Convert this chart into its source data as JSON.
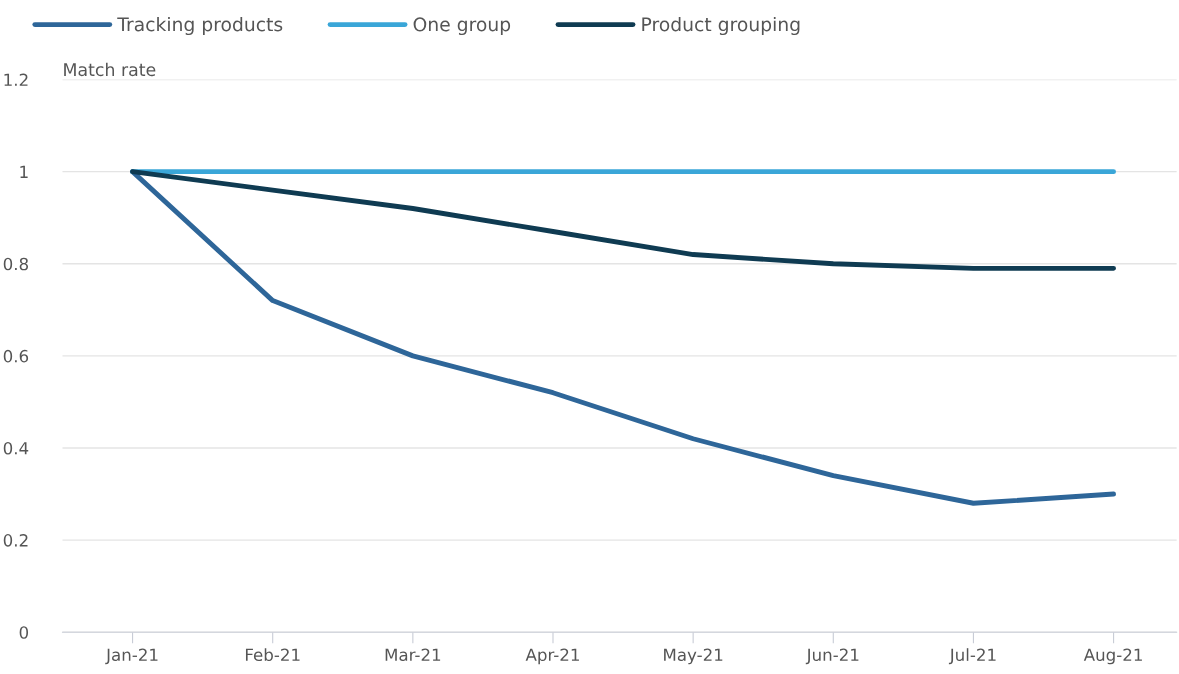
{
  "chart_data": {
    "type": "line",
    "ylabel": "Match rate",
    "categories": [
      "Jan-21",
      "Feb-21",
      "Mar-21",
      "Apr-21",
      "May-21",
      "Jun-21",
      "Jul-21",
      "Aug-21"
    ],
    "series": [
      {
        "name": "Tracking products",
        "color": "#2e6699",
        "values": [
          1,
          0.72,
          0.6,
          0.52,
          0.42,
          0.34,
          0.28,
          0.3
        ]
      },
      {
        "name": "One group",
        "color": "#3aa6d8",
        "values": [
          1,
          1,
          1,
          1,
          1,
          1,
          1,
          1
        ]
      },
      {
        "name": "Product grouping",
        "color": "#0f3b52",
        "values": [
          1,
          0.96,
          0.92,
          0.87,
          0.82,
          0.8,
          0.79,
          0.79
        ]
      }
    ],
    "ylim": [
      0,
      1.2
    ],
    "yticks": [
      0,
      0.2,
      0.4,
      0.6,
      0.8,
      1,
      1.2
    ],
    "grid": "y",
    "legend": "top left",
    "marker": "none",
    "line_style": "solid"
  }
}
